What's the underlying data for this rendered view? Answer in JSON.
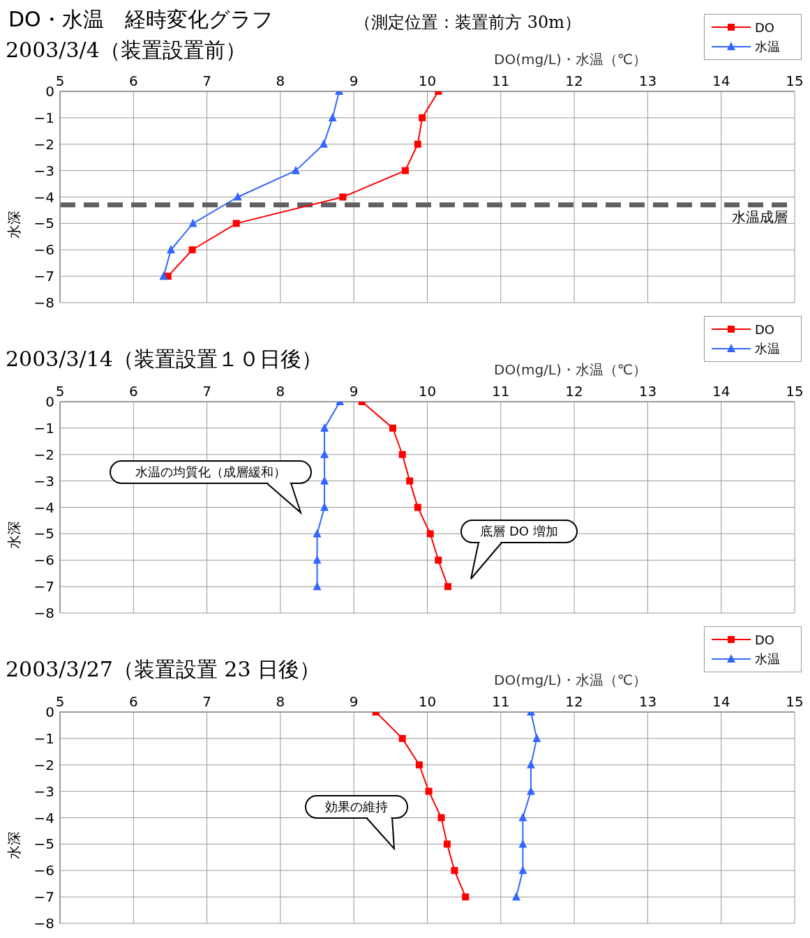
{
  "chart_data": [
    {
      "type": "line",
      "title": "DO・水温　経時変化グラフ",
      "subtitle": "2003/3/4（装置設置前）",
      "xlabel": "DO(mg/L)・水温（℃）",
      "ylabel": "水深",
      "xlim": [
        5,
        15
      ],
      "xticks": [
        5,
        6,
        7,
        8,
        9,
        10,
        11,
        12,
        13,
        14,
        15
      ],
      "ylim": [
        -8,
        0
      ],
      "yticks": [
        0,
        -1,
        -2,
        -3,
        -4,
        -5,
        -6,
        -7,
        -8
      ],
      "grid": true,
      "legend": "top right",
      "series": [
        {
          "name": "DO",
          "color": "#ff0000",
          "marker": "square",
          "x": [
            10.15,
            9.93,
            9.87,
            9.7,
            8.85,
            7.4,
            6.8,
            6.47
          ],
          "values": [
            0,
            -1,
            -2,
            -3,
            -4,
            -5,
            -6,
            -7
          ]
        },
        {
          "name": "水温",
          "color": "#3366ff",
          "marker": "triangle",
          "x": [
            8.8,
            8.71,
            8.59,
            8.21,
            7.42,
            6.81,
            6.51,
            6.41
          ],
          "values": [
            0,
            -1,
            -2,
            -3,
            -4,
            -5,
            -6,
            -7
          ]
        }
      ],
      "ref_lines": [
        {
          "axis": "y",
          "value": -4.3,
          "label": "水温成層",
          "color": "#606060",
          "line_style": "dashed"
        }
      ],
      "annotations": [
        "（測定位置：装置前方 30m）"
      ]
    },
    {
      "type": "line",
      "subtitle": "2003/3/14（装置設置１０日後）",
      "xlabel": "DO(mg/L)・水温（℃）",
      "ylabel": "水深",
      "xlim": [
        5,
        15
      ],
      "xticks": [
        5,
        6,
        7,
        8,
        9,
        10,
        11,
        12,
        13,
        14,
        15
      ],
      "ylim": [
        -8,
        0
      ],
      "yticks": [
        0,
        -1,
        -2,
        -3,
        -4,
        -5,
        -6,
        -7,
        -8
      ],
      "grid": true,
      "legend": "top right",
      "series": [
        {
          "name": "DO",
          "color": "#ff0000",
          "marker": "square",
          "x": [
            9.11,
            9.53,
            9.66,
            9.76,
            9.87,
            10.04,
            10.15,
            10.28
          ],
          "values": [
            0,
            -1,
            -2,
            -3,
            -4,
            -5,
            -6,
            -7
          ]
        },
        {
          "name": "水温",
          "color": "#3366ff",
          "marker": "triangle",
          "x": [
            8.81,
            8.6,
            8.6,
            8.6,
            8.6,
            8.5,
            8.5,
            8.5
          ],
          "values": [
            0,
            -1,
            -2,
            -3,
            -4,
            -5,
            -6,
            -7
          ]
        }
      ],
      "annotations": [
        "水温の均質化（成層緩和）",
        "底層 DO 増加"
      ]
    },
    {
      "type": "line",
      "subtitle": "2003/3/27（装置設置 23 日後）",
      "xlabel": "DO(mg/L)・水温（℃）",
      "ylabel": "水深",
      "xlim": [
        5,
        15
      ],
      "xticks": [
        5,
        6,
        7,
        8,
        9,
        10,
        11,
        12,
        13,
        14,
        15
      ],
      "ylim": [
        -8,
        0
      ],
      "yticks": [
        0,
        -1,
        -2,
        -3,
        -4,
        -5,
        -6,
        -7,
        -8
      ],
      "grid": true,
      "legend": "top right",
      "series": [
        {
          "name": "DO",
          "color": "#ff0000",
          "marker": "square",
          "x": [
            9.3,
            9.66,
            9.89,
            10.02,
            10.19,
            10.27,
            10.37,
            10.52
          ],
          "values": [
            0,
            -1,
            -2,
            -3,
            -4,
            -5,
            -6,
            -7
          ]
        },
        {
          "name": "水温",
          "color": "#3366ff",
          "marker": "triangle",
          "x": [
            11.41,
            11.49,
            11.41,
            11.41,
            11.3,
            11.3,
            11.3,
            11.21
          ],
          "values": [
            0,
            -1,
            -2,
            -3,
            -4,
            -5,
            -6,
            -7
          ]
        }
      ],
      "annotations": [
        "効果の維持"
      ]
    }
  ]
}
